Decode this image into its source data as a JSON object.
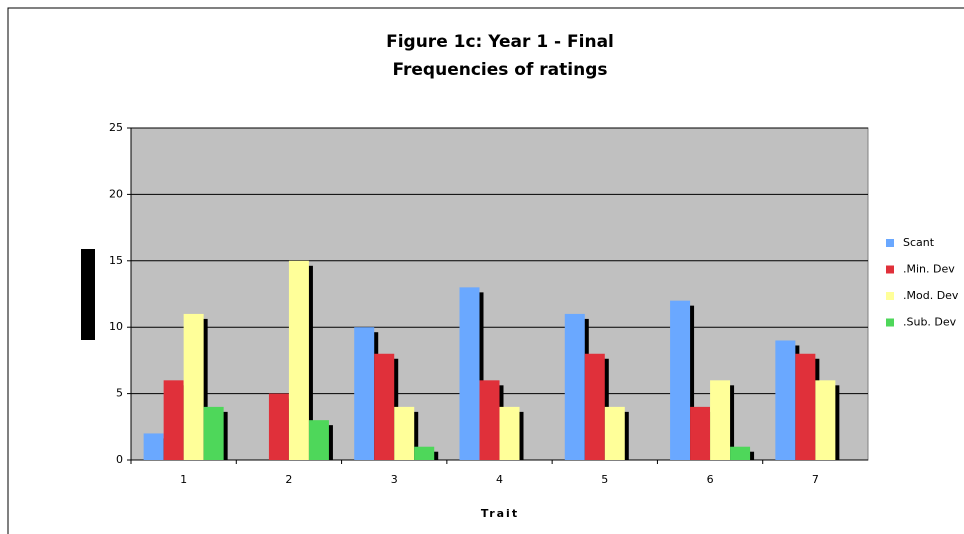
{
  "chart_data": {
    "type": "bar",
    "title": [
      "Figure 1c: Year 1 - Final",
      "Frequencies of ratings"
    ],
    "x_label": "Trait",
    "categories": [
      "1",
      "2",
      "3",
      "4",
      "5",
      "6",
      "7"
    ],
    "series": [
      {
        "name": "Scant",
        "color": "#6aa8ff",
        "values": [
          2,
          0,
          10,
          13,
          11,
          12,
          9
        ]
      },
      {
        "name": ".Min. Dev",
        "color": "#e0303a",
        "values": [
          6,
          5,
          8,
          6,
          8,
          4,
          8
        ]
      },
      {
        "name": ".Mod. Dev",
        "color": "#ffff99",
        "values": [
          11,
          15,
          4,
          4,
          4,
          6,
          6
        ]
      },
      {
        "name": ".Sub. Dev",
        "color": "#4ed75a",
        "values": [
          4,
          3,
          1,
          0,
          0,
          1,
          0
        ]
      }
    ],
    "ylim": [
      0,
      25
    ],
    "yticks": [
      0,
      5,
      10,
      15,
      20,
      25
    ],
    "grid": true
  }
}
